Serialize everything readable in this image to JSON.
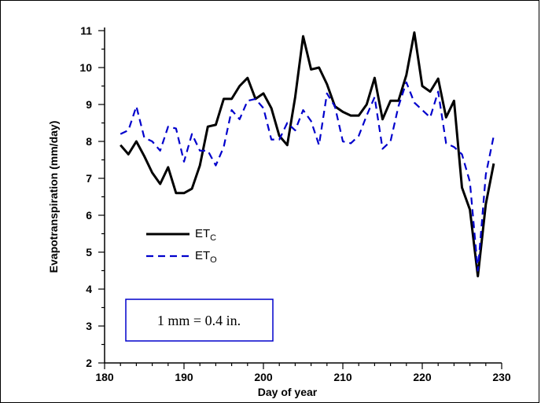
{
  "chart_data": {
    "type": "line",
    "title": "",
    "xlabel": "Day of year",
    "ylabel": "Evapotranspiration (mm/day)",
    "xlim": [
      180,
      230
    ],
    "ylim": [
      2,
      11
    ],
    "xticks": [
      180,
      190,
      200,
      210,
      220,
      230
    ],
    "yticks": [
      2,
      3,
      4,
      5,
      6,
      7,
      8,
      9,
      10,
      11
    ],
    "grid": false,
    "legend_position": "left-middle",
    "series": [
      {
        "name": "ETc",
        "label_main": "ET",
        "label_sub": "C",
        "color": "#000000",
        "style": "solid",
        "x": [
          182,
          183,
          184,
          185,
          186,
          187,
          188,
          189,
          190,
          191,
          192,
          193,
          194,
          195,
          196,
          197,
          198,
          199,
          200,
          201,
          202,
          203,
          204,
          205,
          206,
          207,
          208,
          209,
          210,
          211,
          212,
          213,
          214,
          215,
          216,
          217,
          218,
          219,
          220,
          221,
          222,
          223,
          224,
          225,
          226,
          227,
          228,
          229
        ],
        "y": [
          7.9,
          7.65,
          8.0,
          7.6,
          7.15,
          6.85,
          7.3,
          6.6,
          6.6,
          6.72,
          7.35,
          8.4,
          8.45,
          9.15,
          9.15,
          9.5,
          9.72,
          9.15,
          9.3,
          8.9,
          8.15,
          7.9,
          9.2,
          10.85,
          9.95,
          10.0,
          9.55,
          8.95,
          8.8,
          8.7,
          8.7,
          9.0,
          9.72,
          8.6,
          9.1,
          9.1,
          9.8,
          10.95,
          9.5,
          9.35,
          9.7,
          8.65,
          9.1,
          6.75,
          6.15,
          4.35,
          6.3,
          7.4
        ]
      },
      {
        "name": "ETo",
        "label_main": "ET",
        "label_sub": "O",
        "color": "#0000cc",
        "style": "dashed",
        "x": [
          182,
          183,
          184,
          185,
          186,
          187,
          188,
          189,
          190,
          191,
          192,
          193,
          194,
          195,
          196,
          197,
          198,
          199,
          200,
          201,
          202,
          203,
          204,
          205,
          206,
          207,
          208,
          209,
          210,
          211,
          212,
          213,
          214,
          215,
          216,
          217,
          218,
          219,
          220,
          221,
          222,
          223,
          224,
          225,
          226,
          227,
          228,
          229
        ],
        "y": [
          8.2,
          8.3,
          8.95,
          8.1,
          8.0,
          7.75,
          8.4,
          8.35,
          7.45,
          8.2,
          7.75,
          7.75,
          7.35,
          7.85,
          8.85,
          8.6,
          9.1,
          9.15,
          8.9,
          8.05,
          8.05,
          8.5,
          8.3,
          8.85,
          8.55,
          7.9,
          9.3,
          8.95,
          8.0,
          7.95,
          8.15,
          8.7,
          9.2,
          7.8,
          8.0,
          8.95,
          9.6,
          9.05,
          8.85,
          8.65,
          9.35,
          7.95,
          7.85,
          7.65,
          6.9,
          4.5,
          7.1,
          8.15
        ]
      }
    ],
    "annotations": [
      "1 mm = 0.4 in."
    ]
  },
  "note": {
    "text": "1 mm = 0.4 in.",
    "border_color": "#0000cc"
  }
}
